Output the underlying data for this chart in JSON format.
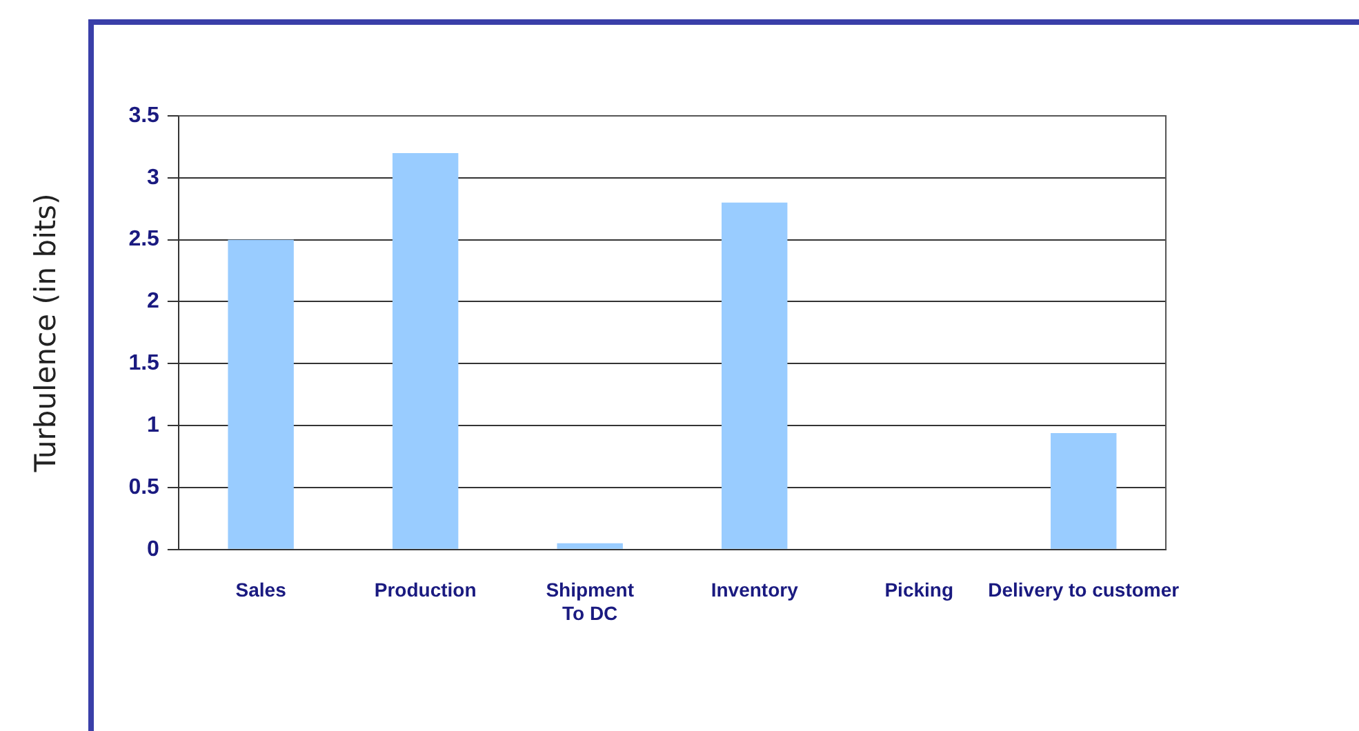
{
  "chart_data": {
    "type": "bar",
    "ylabel": "Turbulence (in bits)",
    "categories": [
      "Sales",
      "Production",
      "Shipment\nTo DC",
      "Inventory",
      "Picking",
      "Delivery to customer"
    ],
    "values": [
      2.5,
      3.2,
      0.05,
      2.8,
      0,
      0.94
    ],
    "color": "#99ccff",
    "ylim": [
      0,
      3.5
    ],
    "yticks": [
      0,
      0.5,
      1,
      1.5,
      2,
      2.5,
      3,
      3.5
    ],
    "grid": "y",
    "legend": false
  }
}
